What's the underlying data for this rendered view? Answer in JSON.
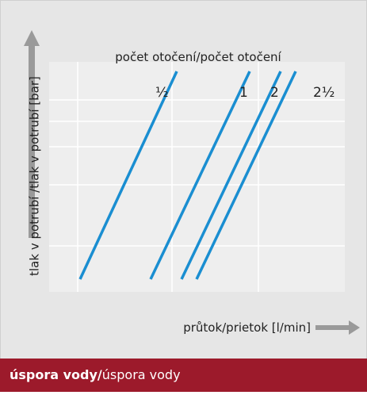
{
  "diagram": {
    "title": "počet otočení/počet otočení",
    "y_label": "tlak v potrubí /tlak v potrubí  [bar]",
    "x_label": "průtok/prietok  [l/min]",
    "line_labels": [
      "½",
      "1",
      "2",
      "2½"
    ]
  },
  "footer": {
    "bold": "úspora vody/",
    "rest": "úspora vody"
  }
}
